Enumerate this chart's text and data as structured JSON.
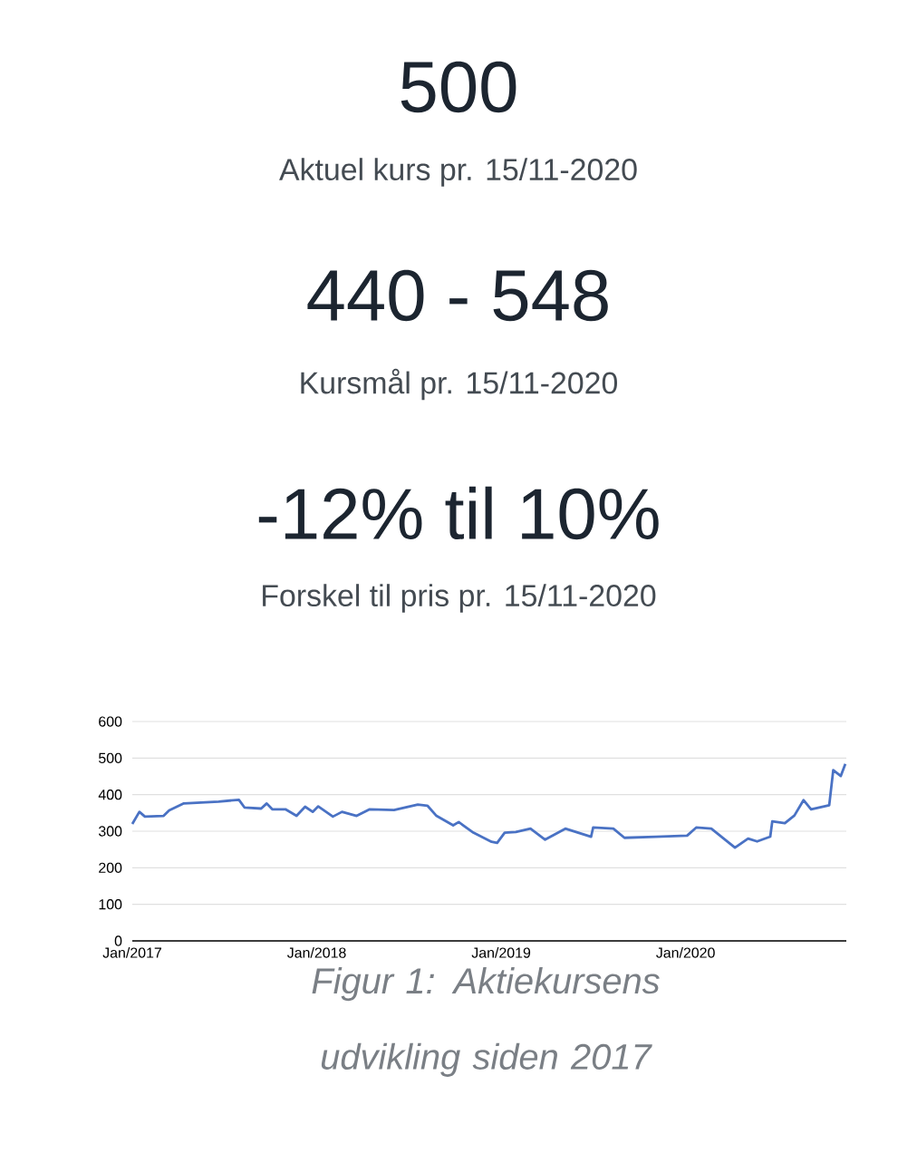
{
  "chart_data": {
    "type": "line",
    "annotations": [
      "500",
      "Aktuel kurs pr. 15/11-2020",
      "440 - 548",
      "Kursmål pr. 15/11-2020",
      "-12% til 10%",
      "Forskel til pris pr. 15/11-2020",
      "Figur 1: Aktiekursens udvikling siden 2017"
    ],
    "x": [
      "2017-01-01",
      "2017-01-15",
      "2017-01-26",
      "2017-03-04",
      "2017-03-15",
      "2017-04-13",
      "2017-06-21",
      "2017-07-31",
      "2017-08-11",
      "2017-09-13",
      "2017-09-24",
      "2017-10-05",
      "2017-10-31",
      "2017-11-22",
      "2017-12-09",
      "2017-12-24",
      "2018-01-04",
      "2018-02-02",
      "2018-02-20",
      "2018-03-21",
      "2018-04-16",
      "2018-06-03",
      "2018-07-20",
      "2018-08-08",
      "2018-08-26",
      "2018-09-28",
      "2018-10-09",
      "2018-11-07",
      "2018-12-13",
      "2018-12-24",
      "2019-01-08",
      "2019-01-30",
      "2019-02-28",
      "2019-03-29",
      "2019-05-08",
      "2019-06-28",
      "2019-07-02",
      "2019-08-11",
      "2019-09-02",
      "2019-11-03",
      "2020-01-04",
      "2020-01-22",
      "2020-02-21",
      "2020-04-08",
      "2020-05-04",
      "2020-05-22",
      "2020-06-17",
      "2020-06-21",
      "2020-07-16",
      "2020-08-04",
      "2020-08-22",
      "2020-09-06",
      "2020-10-12",
      "2020-10-20",
      "2020-11-04",
      "2020-11-13"
    ],
    "series": [
      {
        "color": "#4a72c4",
        "values": [
          320,
          353,
          340,
          342,
          357,
          376,
          381,
          386,
          365,
          362,
          376,
          360,
          360,
          342,
          367,
          353,
          368,
          340,
          353,
          342,
          360,
          358,
          373,
          370,
          342,
          316,
          325,
          296,
          271,
          268,
          296,
          298,
          307,
          277,
          307,
          285,
          310,
          307,
          282,
          285,
          288,
          310,
          307,
          255,
          280,
          272,
          285,
          327,
          322,
          343,
          385,
          360,
          371,
          467,
          451,
          484
        ]
      }
    ],
    "xlim": [
      "2017-01-01",
      "2020-11-15"
    ],
    "xticks": [
      {
        "value": "2017-01-01",
        "label": "Jan/2017"
      },
      {
        "value": "2018-01-01",
        "label": "Jan/2018"
      },
      {
        "value": "2019-01-01",
        "label": "Jan/2019"
      },
      {
        "value": "2020-01-01",
        "label": "Jan/2020"
      }
    ],
    "ylim": [
      0,
      600
    ],
    "yticks": [
      0,
      100,
      200,
      300,
      400,
      500,
      600
    ],
    "grid": "y",
    "marker": "none",
    "line_style": "solid"
  }
}
